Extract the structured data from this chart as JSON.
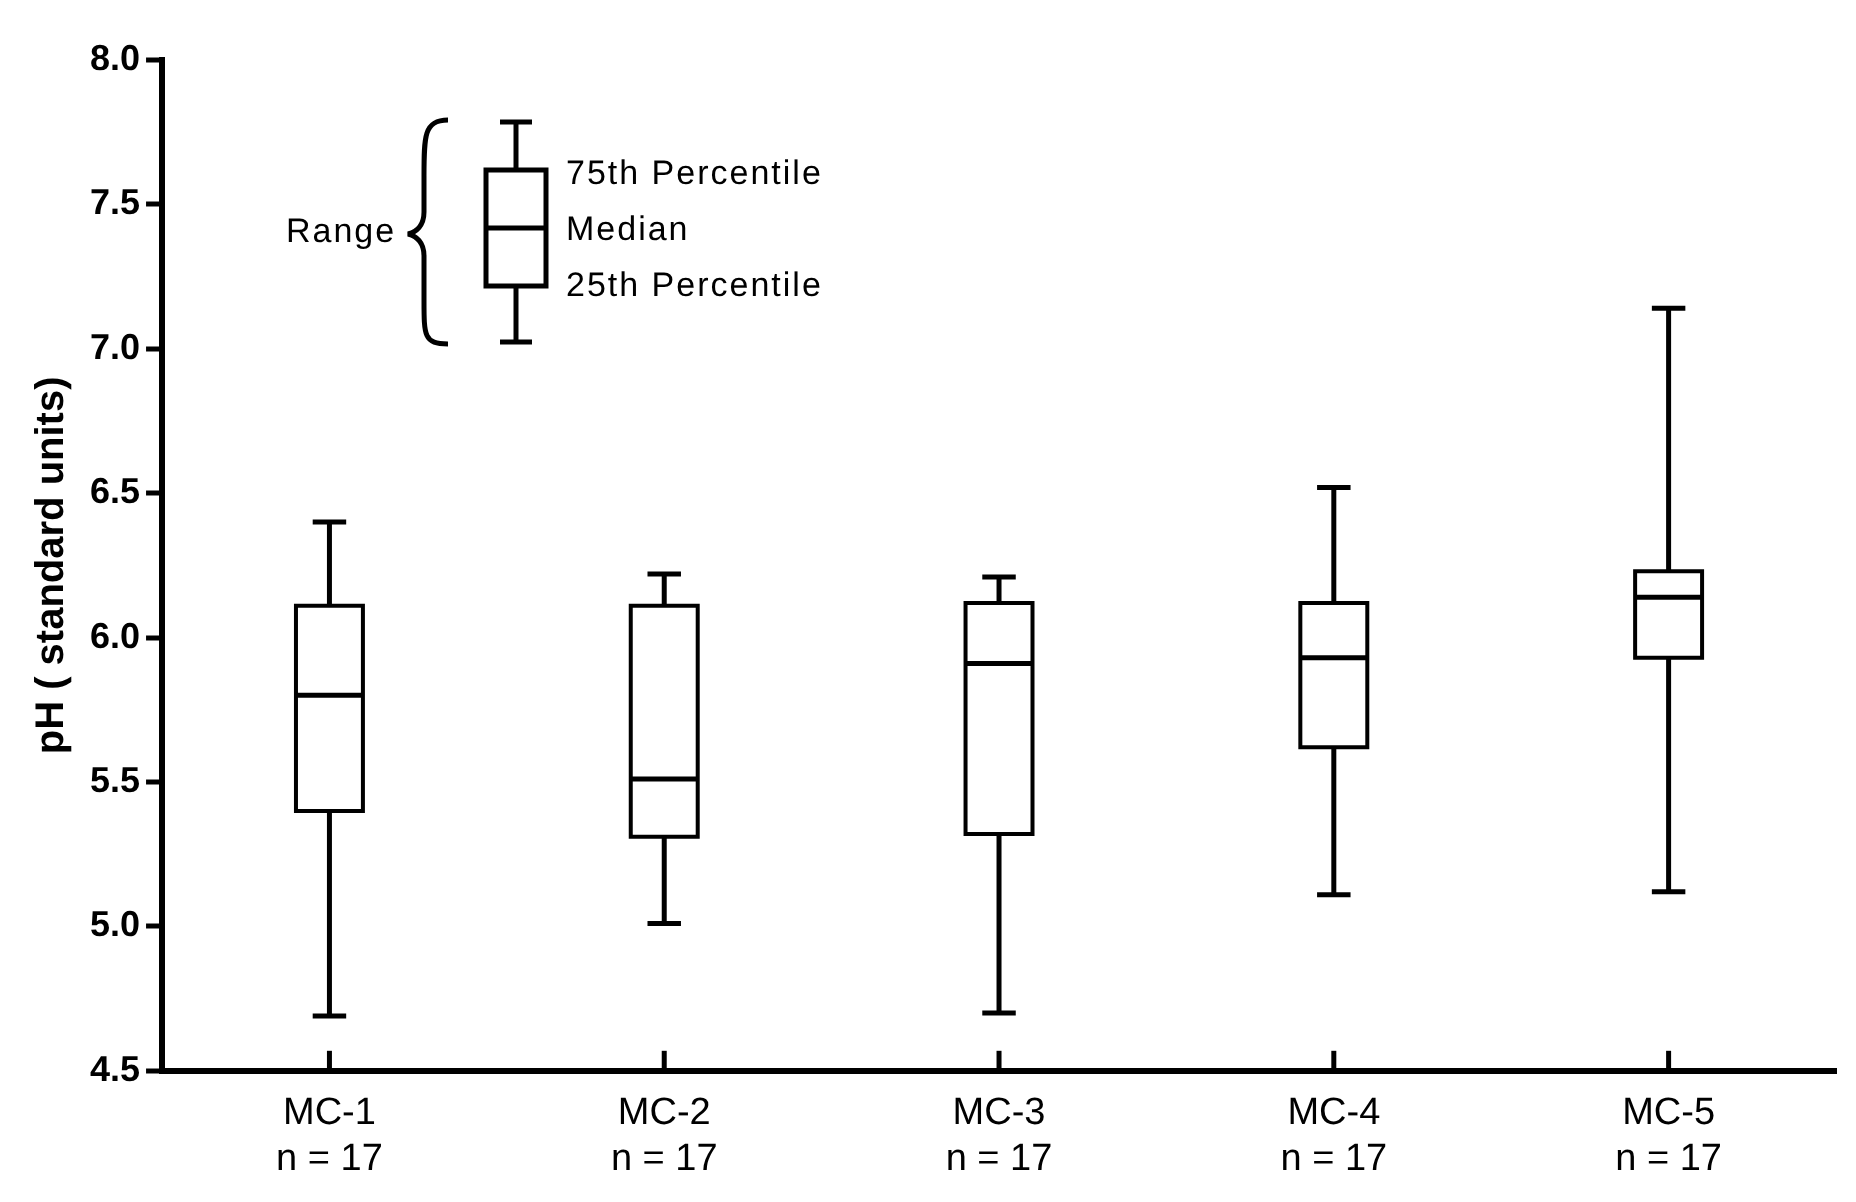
{
  "chart_data": {
    "type": "box",
    "ylabel": "pH ( standard units)",
    "categories": [
      "MC-1\nn = 17",
      "MC-2\nn = 17",
      "MC-3\nn = 17",
      "MC-4\nn = 17",
      "MC-5\nn = 17"
    ],
    "boxes": [
      {
        "low": 4.69,
        "q1": 5.4,
        "median": 5.8,
        "q3": 6.11,
        "high": 6.4
      },
      {
        "low": 5.01,
        "q1": 5.31,
        "median": 5.51,
        "q3": 6.11,
        "high": 6.22
      },
      {
        "low": 4.7,
        "q1": 5.32,
        "median": 5.91,
        "q3": 6.12,
        "high": 6.21
      },
      {
        "low": 5.11,
        "q1": 5.62,
        "median": 5.93,
        "q3": 6.12,
        "high": 6.52
      },
      {
        "low": 5.12,
        "q1": 5.93,
        "median": 6.14,
        "q3": 6.23,
        "high": 7.14
      }
    ],
    "color": "#000000",
    "ylim": [
      4.5,
      8.0
    ],
    "yticks": [
      {
        "value": 4.5,
        "label": "4.5"
      },
      {
        "value": 5,
        "label": "5.0"
      },
      {
        "value": 5.5,
        "label": "5.5"
      },
      {
        "value": 6,
        "label": "6.0"
      },
      {
        "value": 6.5,
        "label": "6.5"
      },
      {
        "value": 7,
        "label": "7.0"
      },
      {
        "value": 7.5,
        "label": "7.5"
      },
      {
        "value": 8,
        "label": "8.0"
      }
    ],
    "grid": false,
    "legend": false,
    "annotations": [
      "Range",
      "75th Percentile",
      "Median",
      "25th Percentile"
    ]
  }
}
